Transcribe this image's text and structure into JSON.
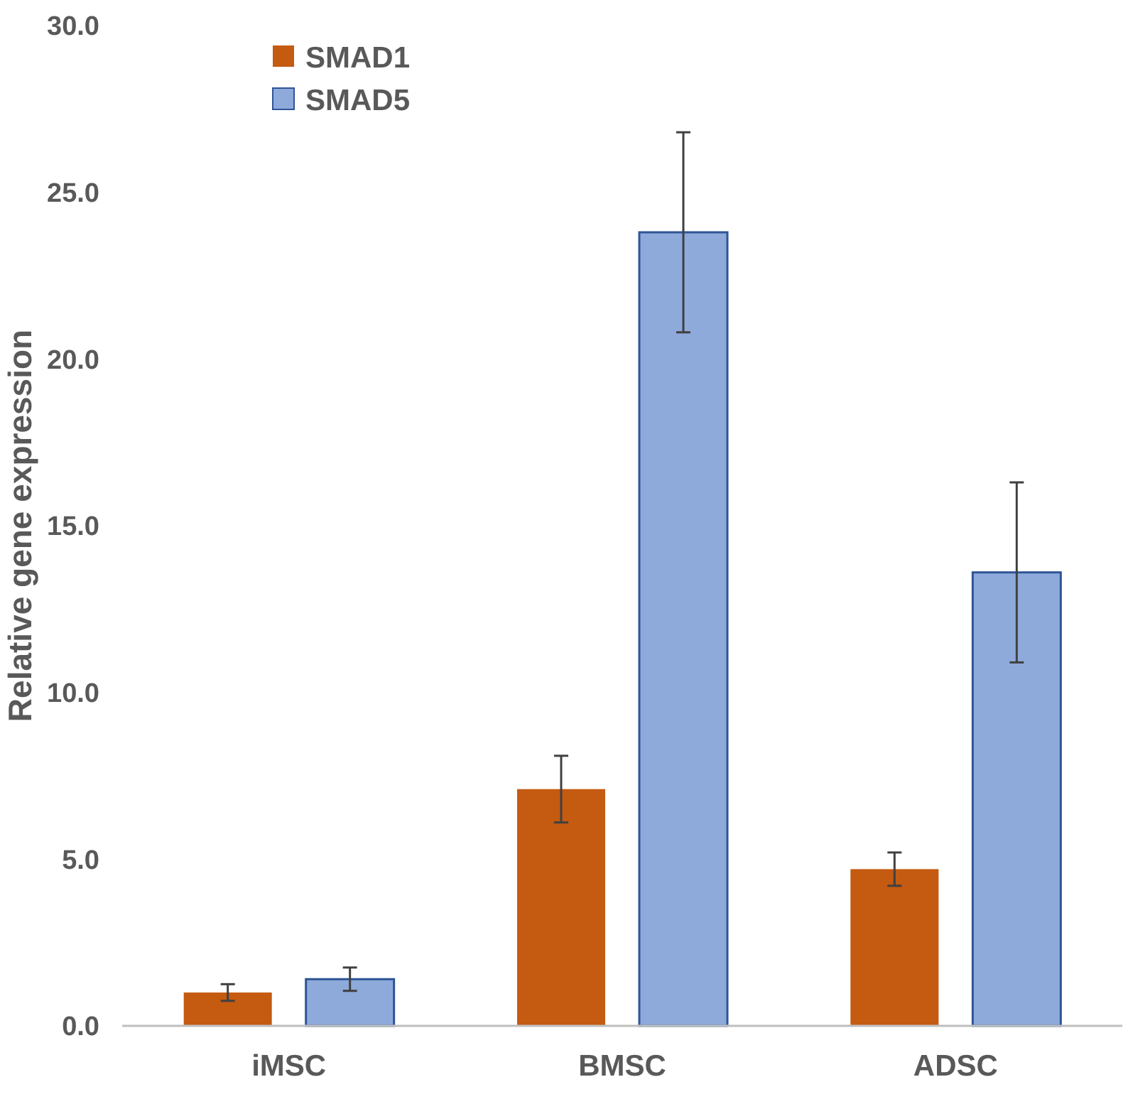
{
  "chart_data": {
    "type": "bar",
    "ylabel": "Relative gene expression",
    "categories": [
      "iMSC",
      "BMSC",
      "ADSC"
    ],
    "series": [
      {
        "name": "SMAD1",
        "color": "#c55a11",
        "values": [
          1.0,
          7.1,
          4.7
        ],
        "errors": [
          0.25,
          1.0,
          0.5
        ]
      },
      {
        "name": "SMAD5",
        "color": "#8eaadb",
        "values": [
          1.4,
          23.8,
          13.6
        ],
        "errors": [
          0.35,
          3.0,
          2.7
        ]
      }
    ],
    "ylim": [
      0,
      30
    ],
    "yticks": [
      {
        "value": 0,
        "label": "0.0"
      },
      {
        "value": 5,
        "label": "5.0"
      },
      {
        "value": 10,
        "label": "10.0"
      },
      {
        "value": 15,
        "label": "15.0"
      },
      {
        "value": 20,
        "label": "20.0"
      },
      {
        "value": 25,
        "label": "25.0"
      },
      {
        "value": 30,
        "label": "30.0"
      }
    ],
    "grid": false,
    "legend": "top left"
  }
}
